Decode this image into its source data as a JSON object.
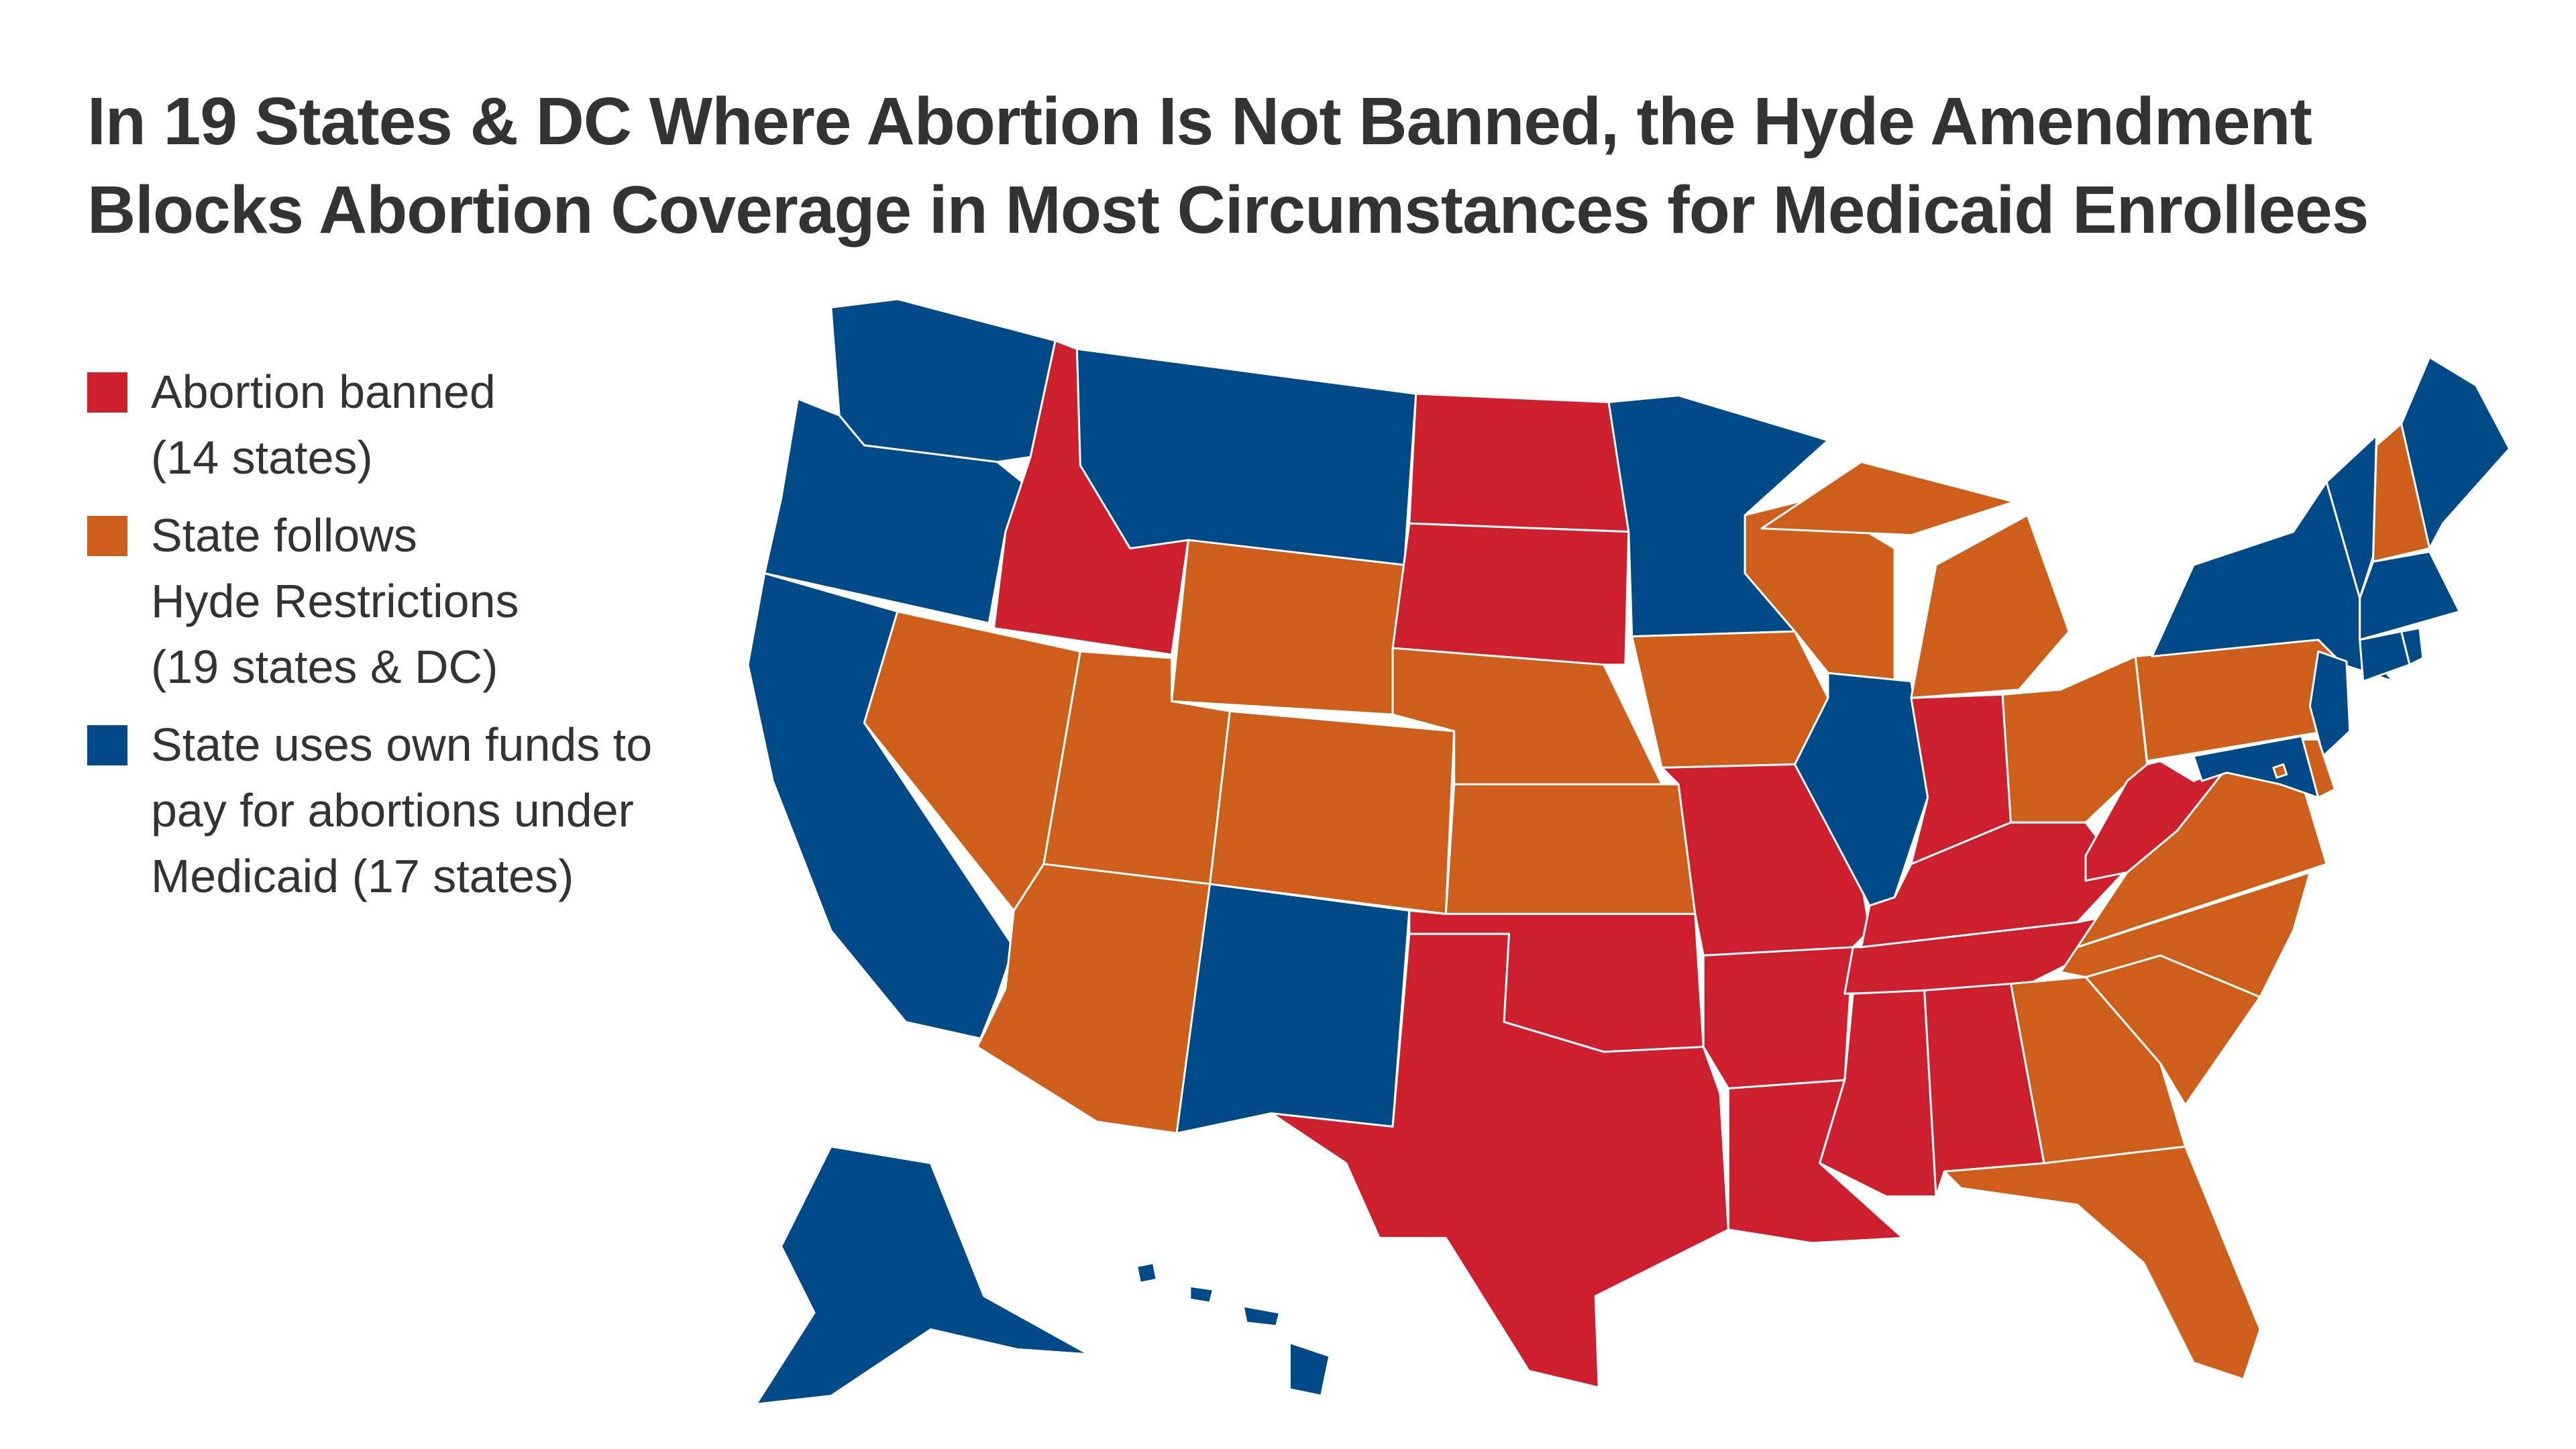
{
  "title": {
    "line1": "In 19 States & DC Where Abortion Is Not Banned, the Hyde Amendment",
    "line2": "Blocks Abortion Coverage in Most Circumstances for Medicaid Enrollees"
  },
  "legend": [
    {
      "key": "banned",
      "line1": "Abortion banned",
      "line2": "(14 states)",
      "line3": "",
      "color": "#CD202F"
    },
    {
      "key": "hyde",
      "line1": "State follows",
      "line2": "Hyde Restrictions",
      "line3": "(19 states & DC)",
      "color": "#CD5F1A"
    },
    {
      "key": "own",
      "line1": "State uses own funds to",
      "line2": "pay for abortions under",
      "line3": "Medicaid (17 states)",
      "color": "#004B87"
    }
  ],
  "map_data": {
    "categories": {
      "banned": "#CD202F",
      "hyde": "#CD5F1A",
      "own": "#004B87"
    },
    "states": {
      "WA": "own",
      "OR": "own",
      "CA": "own",
      "NV": "hyde",
      "ID": "banned",
      "MT": "own",
      "WY": "hyde",
      "UT": "hyde",
      "CO": "hyde",
      "AZ": "hyde",
      "NM": "own",
      "ND": "banned",
      "SD": "banned",
      "NE": "hyde",
      "KS": "hyde",
      "OK": "banned",
      "TX": "banned",
      "MN": "own",
      "IA": "hyde",
      "MO": "banned",
      "AR": "banned",
      "LA": "banned",
      "WI": "hyde",
      "IL": "own",
      "MI": "hyde",
      "IN": "banned",
      "OH": "hyde",
      "KY": "banned",
      "TN": "banned",
      "MS": "banned",
      "AL": "banned",
      "GA": "hyde",
      "FL": "hyde",
      "SC": "hyde",
      "NC": "hyde",
      "VA": "hyde",
      "WV": "banned",
      "PA": "hyde",
      "NY": "own",
      "VT": "own",
      "NH": "hyde",
      "ME": "own",
      "MA": "own",
      "CT": "own",
      "RI": "own",
      "NJ": "own",
      "DE": "hyde",
      "MD": "own",
      "DC": "hyde",
      "AK": "own",
      "HI": "own"
    }
  }
}
